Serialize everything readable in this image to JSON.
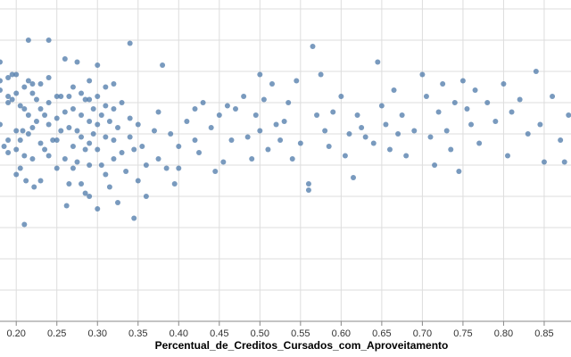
{
  "chart_data": {
    "type": "scatter",
    "xlabel": "Percentual_de_Creditos_Cursados_com_Aproveitamento",
    "x_ticks": [
      "0.20",
      "0.25",
      "0.30",
      "0.35",
      "0.40",
      "0.45",
      "0.50",
      "0.55",
      "0.60",
      "0.65",
      "0.70",
      "0.75",
      "0.80",
      "0.85"
    ],
    "xlim": [
      0.18,
      0.883
    ],
    "y_gridlines": 10,
    "grid": true,
    "colors": {
      "point": "#4c78a8",
      "grid": "#dddddd",
      "axis": "#888888"
    },
    "points": [
      [
        0.18,
        0.83
      ],
      [
        0.18,
        0.77
      ],
      [
        0.18,
        0.74
      ],
      [
        0.18,
        0.63
      ],
      [
        0.185,
        0.56
      ],
      [
        0.19,
        0.78
      ],
      [
        0.19,
        0.72
      ],
      [
        0.19,
        0.7
      ],
      [
        0.19,
        0.58
      ],
      [
        0.19,
        0.54
      ],
      [
        0.195,
        0.79
      ],
      [
        0.195,
        0.71
      ],
      [
        0.2,
        0.79
      ],
      [
        0.2,
        0.73
      ],
      [
        0.2,
        0.61
      ],
      [
        0.2,
        0.55
      ],
      [
        0.2,
        0.47
      ],
      [
        0.205,
        0.69
      ],
      [
        0.205,
        0.58
      ],
      [
        0.205,
        0.49
      ],
      [
        0.208,
        0.61
      ],
      [
        0.21,
        0.75
      ],
      [
        0.21,
        0.68
      ],
      [
        0.21,
        0.53
      ],
      [
        0.21,
        0.31
      ],
      [
        0.212,
        0.45
      ],
      [
        0.215,
        0.9
      ],
      [
        0.215,
        0.77
      ],
      [
        0.215,
        0.66
      ],
      [
        0.215,
        0.6
      ],
      [
        0.22,
        0.76
      ],
      [
        0.22,
        0.73
      ],
      [
        0.22,
        0.62
      ],
      [
        0.22,
        0.52
      ],
      [
        0.222,
        0.43
      ],
      [
        0.225,
        0.71
      ],
      [
        0.225,
        0.64
      ],
      [
        0.23,
        0.76
      ],
      [
        0.23,
        0.68
      ],
      [
        0.23,
        0.57
      ],
      [
        0.23,
        0.45
      ],
      [
        0.235,
        0.66
      ],
      [
        0.235,
        0.55
      ],
      [
        0.24,
        0.9
      ],
      [
        0.24,
        0.78
      ],
      [
        0.24,
        0.7
      ],
      [
        0.24,
        0.63
      ],
      [
        0.24,
        0.53
      ],
      [
        0.245,
        0.58
      ],
      [
        0.25,
        0.72
      ],
      [
        0.25,
        0.65
      ],
      [
        0.25,
        0.58
      ],
      [
        0.25,
        0.49
      ],
      [
        0.255,
        0.72
      ],
      [
        0.255,
        0.61
      ],
      [
        0.26,
        0.84
      ],
      [
        0.26,
        0.67
      ],
      [
        0.26,
        0.52
      ],
      [
        0.262,
        0.37
      ],
      [
        0.265,
        0.72
      ],
      [
        0.265,
        0.62
      ],
      [
        0.265,
        0.44
      ],
      [
        0.27,
        0.75
      ],
      [
        0.27,
        0.68
      ],
      [
        0.27,
        0.56
      ],
      [
        0.27,
        0.49
      ],
      [
        0.275,
        0.83
      ],
      [
        0.275,
        0.61
      ],
      [
        0.275,
        0.51
      ],
      [
        0.28,
        0.73
      ],
      [
        0.28,
        0.66
      ],
      [
        0.28,
        0.59
      ],
      [
        0.28,
        0.44
      ],
      [
        0.285,
        0.71
      ],
      [
        0.285,
        0.55
      ],
      [
        0.285,
        0.41
      ],
      [
        0.29,
        0.77
      ],
      [
        0.29,
        0.71
      ],
      [
        0.29,
        0.64
      ],
      [
        0.29,
        0.57
      ],
      [
        0.29,
        0.5
      ],
      [
        0.29,
        0.4
      ],
      [
        0.295,
        0.68
      ],
      [
        0.295,
        0.6
      ],
      [
        0.3,
        0.82
      ],
      [
        0.3,
        0.72
      ],
      [
        0.3,
        0.63
      ],
      [
        0.3,
        0.55
      ],
      [
        0.3,
        0.36
      ],
      [
        0.305,
        0.66
      ],
      [
        0.305,
        0.5
      ],
      [
        0.31,
        0.75
      ],
      [
        0.31,
        0.69
      ],
      [
        0.31,
        0.59
      ],
      [
        0.31,
        0.47
      ],
      [
        0.315,
        0.64
      ],
      [
        0.315,
        0.43
      ],
      [
        0.32,
        0.76
      ],
      [
        0.32,
        0.68
      ],
      [
        0.32,
        0.58
      ],
      [
        0.32,
        0.52
      ],
      [
        0.325,
        0.62
      ],
      [
        0.325,
        0.38
      ],
      [
        0.33,
        0.7
      ],
      [
        0.33,
        0.54
      ],
      [
        0.335,
        0.48
      ],
      [
        0.34,
        0.89
      ],
      [
        0.34,
        0.65
      ],
      [
        0.34,
        0.59
      ],
      [
        0.345,
        0.55
      ],
      [
        0.345,
        0.33
      ],
      [
        0.35,
        0.63
      ],
      [
        0.35,
        0.45
      ],
      [
        0.355,
        0.56
      ],
      [
        0.36,
        0.5
      ],
      [
        0.36,
        0.4
      ],
      [
        0.37,
        0.61
      ],
      [
        0.375,
        0.67
      ],
      [
        0.375,
        0.52
      ],
      [
        0.38,
        0.82
      ],
      [
        0.385,
        0.49
      ],
      [
        0.39,
        0.6
      ],
      [
        0.395,
        0.44
      ],
      [
        0.4,
        0.56
      ],
      [
        0.4,
        0.49
      ],
      [
        0.41,
        0.64
      ],
      [
        0.42,
        0.68
      ],
      [
        0.42,
        0.58
      ],
      [
        0.425,
        0.54
      ],
      [
        0.43,
        0.7
      ],
      [
        0.44,
        0.62
      ],
      [
        0.445,
        0.48
      ],
      [
        0.45,
        0.66
      ],
      [
        0.455,
        0.51
      ],
      [
        0.46,
        0.69
      ],
      [
        0.465,
        0.58
      ],
      [
        0.47,
        0.68
      ],
      [
        0.48,
        0.72
      ],
      [
        0.485,
        0.59
      ],
      [
        0.49,
        0.52
      ],
      [
        0.495,
        0.66
      ],
      [
        0.5,
        0.79
      ],
      [
        0.5,
        0.61
      ],
      [
        0.505,
        0.71
      ],
      [
        0.51,
        0.55
      ],
      [
        0.515,
        0.76
      ],
      [
        0.52,
        0.63
      ],
      [
        0.525,
        0.58
      ],
      [
        0.53,
        0.64
      ],
      [
        0.535,
        0.7
      ],
      [
        0.54,
        0.52
      ],
      [
        0.545,
        0.77
      ],
      [
        0.55,
        0.57
      ],
      [
        0.56,
        0.44
      ],
      [
        0.56,
        0.42
      ],
      [
        0.565,
        0.88
      ],
      [
        0.57,
        0.66
      ],
      [
        0.575,
        0.79
      ],
      [
        0.58,
        0.61
      ],
      [
        0.585,
        0.56
      ],
      [
        0.59,
        0.67
      ],
      [
        0.6,
        0.72
      ],
      [
        0.605,
        0.53
      ],
      [
        0.61,
        0.6
      ],
      [
        0.615,
        0.46
      ],
      [
        0.62,
        0.66
      ],
      [
        0.625,
        0.62
      ],
      [
        0.63,
        0.59
      ],
      [
        0.64,
        0.57
      ],
      [
        0.645,
        0.83
      ],
      [
        0.65,
        0.69
      ],
      [
        0.655,
        0.63
      ],
      [
        0.66,
        0.55
      ],
      [
        0.665,
        0.74
      ],
      [
        0.67,
        0.6
      ],
      [
        0.675,
        0.66
      ],
      [
        0.68,
        0.53
      ],
      [
        0.69,
        0.61
      ],
      [
        0.7,
        0.79
      ],
      [
        0.705,
        0.72
      ],
      [
        0.71,
        0.59
      ],
      [
        0.715,
        0.5
      ],
      [
        0.72,
        0.67
      ],
      [
        0.725,
        0.76
      ],
      [
        0.73,
        0.61
      ],
      [
        0.735,
        0.55
      ],
      [
        0.74,
        0.7
      ],
      [
        0.745,
        0.48
      ],
      [
        0.75,
        0.77
      ],
      [
        0.755,
        0.68
      ],
      [
        0.76,
        0.63
      ],
      [
        0.765,
        0.74
      ],
      [
        0.77,
        0.57
      ],
      [
        0.78,
        0.7
      ],
      [
        0.79,
        0.64
      ],
      [
        0.8,
        0.76
      ],
      [
        0.805,
        0.53
      ],
      [
        0.81,
        0.67
      ],
      [
        0.82,
        0.71
      ],
      [
        0.83,
        0.6
      ],
      [
        0.84,
        0.8
      ],
      [
        0.845,
        0.63
      ],
      [
        0.85,
        0.51
      ],
      [
        0.86,
        0.72
      ],
      [
        0.87,
        0.58
      ],
      [
        0.875,
        0.51
      ],
      [
        0.88,
        0.66
      ]
    ]
  }
}
